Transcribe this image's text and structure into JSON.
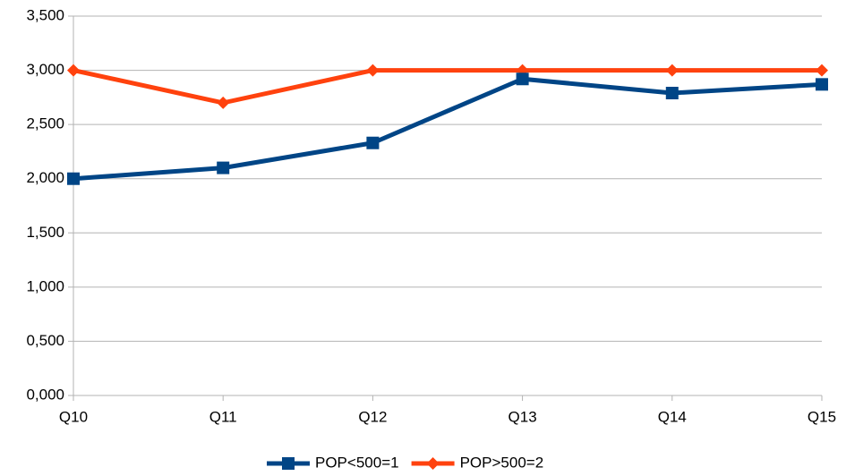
{
  "chart_data": {
    "type": "line",
    "categories": [
      "Q10",
      "Q11",
      "Q12",
      "Q13",
      "Q14",
      "Q15"
    ],
    "series": [
      {
        "name": "POP<500=1",
        "color": "#004586",
        "marker": "square",
        "values": [
          2.0,
          2.1,
          2.33,
          2.92,
          2.79,
          2.87
        ]
      },
      {
        "name": "POP>500=2",
        "color": "#ff420e",
        "marker": "diamond",
        "values": [
          3.0,
          2.7,
          3.0,
          3.0,
          3.0,
          3.0
        ]
      }
    ],
    "ylim": [
      0,
      3.5
    ],
    "yticks": [
      {
        "value": 0,
        "label": "0,000"
      },
      {
        "value": 0.5,
        "label": "0,500"
      },
      {
        "value": 1,
        "label": "1,000"
      },
      {
        "value": 1.5,
        "label": "1,500"
      },
      {
        "value": 2,
        "label": "2,000"
      },
      {
        "value": 2.5,
        "label": "2,500"
      },
      {
        "value": 3,
        "label": "3,000"
      },
      {
        "value": 3.5,
        "label": "3,500"
      }
    ],
    "grid": true,
    "legend": "bottom"
  }
}
